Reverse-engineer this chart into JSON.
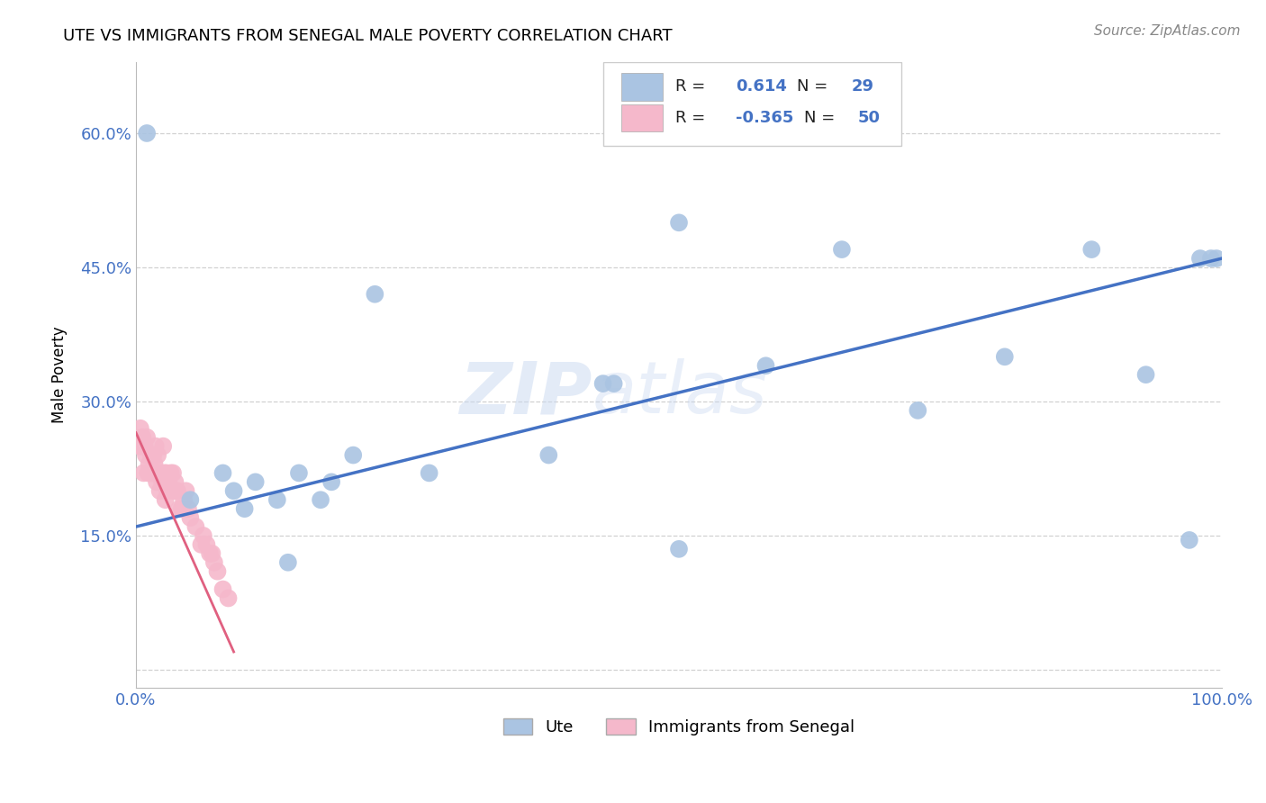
{
  "title": "UTE VS IMMIGRANTS FROM SENEGAL MALE POVERTY CORRELATION CHART",
  "source": "Source: ZipAtlas.com",
  "xlabel": "",
  "ylabel": "Male Poverty",
  "watermark_zip": "ZIP",
  "watermark_atlas": "atlas",
  "xlim": [
    0,
    1
  ],
  "ylim": [
    -0.02,
    0.68
  ],
  "xticks": [
    0.0,
    0.25,
    0.5,
    0.75,
    1.0
  ],
  "xtick_labels": [
    "0.0%",
    "",
    "",
    "",
    "100.0%"
  ],
  "yticks": [
    0.0,
    0.15,
    0.3,
    0.45,
    0.6
  ],
  "ytick_labels": [
    "",
    "15.0%",
    "30.0%",
    "45.0%",
    "60.0%"
  ],
  "R_ute": 0.614,
  "N_ute": 29,
  "R_senegal": -0.365,
  "N_senegal": 50,
  "legend_labels": [
    "Ute",
    "Immigrants from Senegal"
  ],
  "blue_color": "#aac4e2",
  "pink_color": "#f5b8cb",
  "blue_line_color": "#4472c4",
  "pink_line_color": "#e06080",
  "ute_x": [
    0.01,
    0.05,
    0.08,
    0.09,
    0.1,
    0.11,
    0.13,
    0.14,
    0.15,
    0.17,
    0.18,
    0.2,
    0.22,
    0.27,
    0.38,
    0.43,
    0.44,
    0.5,
    0.58,
    0.65,
    0.72,
    0.8,
    0.88,
    0.93,
    0.97,
    0.98,
    0.99,
    0.995,
    0.5
  ],
  "ute_y": [
    0.6,
    0.19,
    0.22,
    0.2,
    0.18,
    0.21,
    0.19,
    0.12,
    0.22,
    0.19,
    0.21,
    0.24,
    0.42,
    0.22,
    0.24,
    0.32,
    0.32,
    0.135,
    0.34,
    0.47,
    0.29,
    0.35,
    0.47,
    0.33,
    0.145,
    0.46,
    0.46,
    0.46,
    0.5
  ],
  "senegal_x": [
    0.003,
    0.004,
    0.005,
    0.006,
    0.007,
    0.008,
    0.009,
    0.01,
    0.011,
    0.012,
    0.013,
    0.014,
    0.015,
    0.016,
    0.017,
    0.018,
    0.019,
    0.02,
    0.021,
    0.022,
    0.023,
    0.024,
    0.025,
    0.026,
    0.027,
    0.028,
    0.029,
    0.03,
    0.032,
    0.034,
    0.035,
    0.036,
    0.037,
    0.038,
    0.04,
    0.042,
    0.044,
    0.046,
    0.048,
    0.05,
    0.055,
    0.06,
    0.062,
    0.065,
    0.068,
    0.07,
    0.072,
    0.075,
    0.08,
    0.085
  ],
  "senegal_y": [
    0.25,
    0.27,
    0.25,
    0.26,
    0.22,
    0.25,
    0.24,
    0.26,
    0.22,
    0.23,
    0.22,
    0.24,
    0.22,
    0.24,
    0.23,
    0.25,
    0.21,
    0.24,
    0.22,
    0.2,
    0.22,
    0.21,
    0.25,
    0.22,
    0.19,
    0.22,
    0.2,
    0.21,
    0.22,
    0.22,
    0.2,
    0.21,
    0.2,
    0.2,
    0.18,
    0.18,
    0.19,
    0.2,
    0.18,
    0.17,
    0.16,
    0.14,
    0.15,
    0.14,
    0.13,
    0.13,
    0.12,
    0.11,
    0.09,
    0.08
  ],
  "ute_line_x": [
    0.0,
    1.0
  ],
  "ute_line_y": [
    0.16,
    0.46
  ],
  "senegal_line_x": [
    0.0,
    0.09
  ],
  "senegal_line_y": [
    0.265,
    0.02
  ]
}
